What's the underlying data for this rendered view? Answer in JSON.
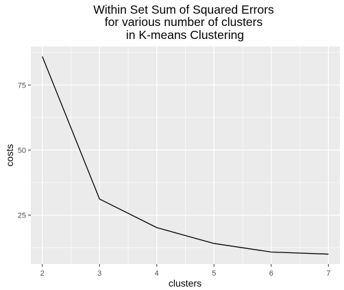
{
  "chart_data": {
    "type": "line",
    "title_lines": [
      "Within Set Sum of Squared Errors",
      "for various number of clusters",
      "in K-means Clustering"
    ],
    "xlabel": "clusters",
    "ylabel": "costs",
    "x": [
      2,
      3,
      4,
      5,
      6,
      7
    ],
    "series": [
      {
        "values": [
          86.0,
          31.2,
          20.2,
          14.1,
          10.8,
          10.0
        ]
      }
    ],
    "xlim": [
      1.8,
      7.2
    ],
    "ylim": [
      6.2,
      89.8
    ],
    "x_ticks": [
      "2",
      "3",
      "4",
      "5",
      "6",
      "7"
    ],
    "y_ticks": [
      "25",
      "50",
      "75"
    ],
    "grid": true,
    "legend": "none",
    "colors": {
      "panel": "#ebebeb",
      "grid_major": "#ffffff",
      "line": "#000000",
      "tick_text": "#4d4d4d"
    }
  }
}
